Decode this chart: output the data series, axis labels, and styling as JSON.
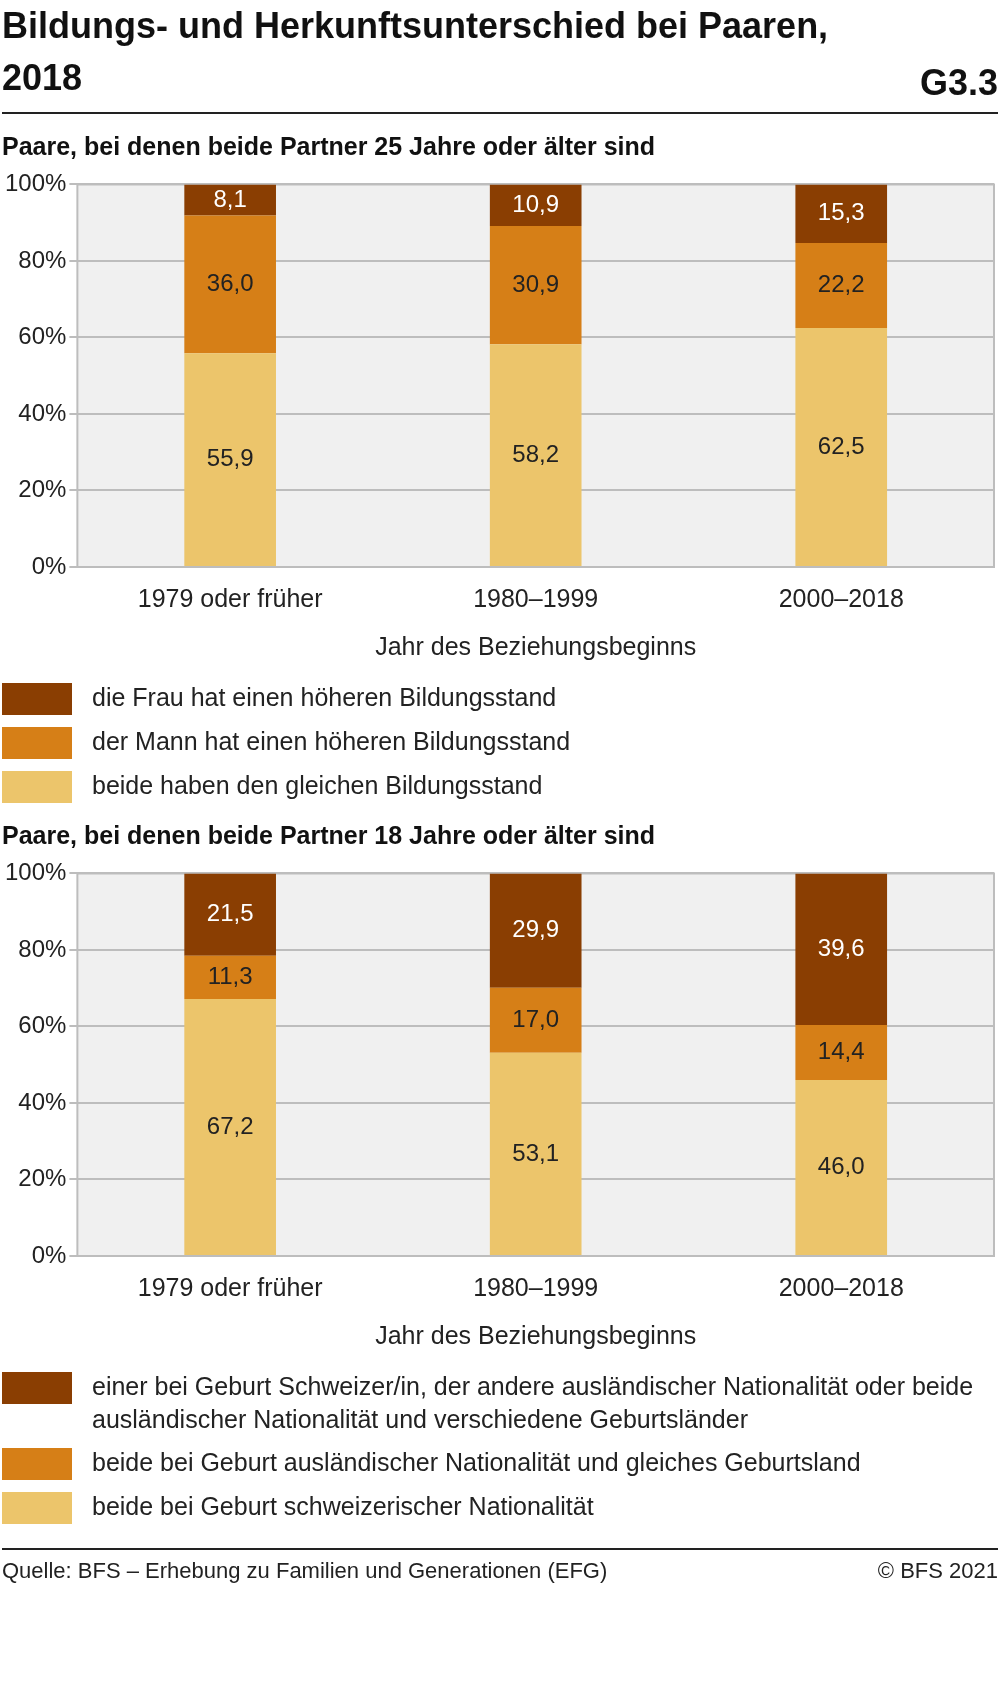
{
  "chart_data": [
    {
      "type": "bar",
      "title": "Bildungs- und Herkunftsunterschied bei Paaren, 2018",
      "subtitle": "Paare, bei denen beide Partner 25 Jahre oder älter sind",
      "annotations": [
        "G3.3"
      ],
      "xlabel": "Jahr des Beziehungsbeginns",
      "categories": [
        "1979 oder früher",
        "1980–1999",
        "2000–2018"
      ],
      "stacked": true,
      "grid": "y",
      "legend": "bottom",
      "ylim": [
        0,
        100
      ],
      "yticks": [
        {
          "value": 0,
          "label": "0%"
        },
        {
          "value": 20,
          "label": "20%"
        },
        {
          "value": 40,
          "label": "40%"
        },
        {
          "value": 60,
          "label": "60%"
        },
        {
          "value": 80,
          "label": "80%"
        },
        {
          "value": 100,
          "label": "100%"
        }
      ],
      "series": [
        {
          "name": "beide haben den gleichen Bildungsstand",
          "color": "#ecc56b",
          "values": [
            55.9,
            58.2,
            62.5
          ],
          "value_labels": [
            "55,9",
            "58,2",
            "62,5"
          ]
        },
        {
          "name": "der Mann hat einen höheren Bildungsstand",
          "color": "#d67f17",
          "values": [
            36.0,
            30.9,
            22.2
          ],
          "value_labels": [
            "36,0",
            "30,9",
            "22,2"
          ]
        },
        {
          "name": "die Frau hat einen höheren Bildungsstand",
          "color": "#8a3e02",
          "values": [
            8.1,
            10.9,
            15.3
          ],
          "value_labels": [
            "8,1",
            "10,9",
            "15,3"
          ]
        }
      ]
    },
    {
      "type": "bar",
      "subtitle": "Paare, bei denen beide Partner 18 Jahre oder älter sind",
      "annotations": [
        "Quelle: BFS – Erhebung zu Familien und Generationen (EFG)",
        "© BFS 2021"
      ],
      "xlabel": "Jahr des Beziehungsbeginns",
      "categories": [
        "1979 oder früher",
        "1980–1999",
        "2000–2018"
      ],
      "stacked": true,
      "grid": "y",
      "legend": "bottom",
      "ylim": [
        0,
        100
      ],
      "yticks": [
        {
          "value": 0,
          "label": "0%"
        },
        {
          "value": 20,
          "label": "20%"
        },
        {
          "value": 40,
          "label": "40%"
        },
        {
          "value": 60,
          "label": "60%"
        },
        {
          "value": 80,
          "label": "80%"
        },
        {
          "value": 100,
          "label": "100%"
        }
      ],
      "series": [
        {
          "name": "beide bei Geburt schweizerischer Nationalität",
          "color": "#ecc56b",
          "values": [
            67.2,
            53.1,
            46.0
          ],
          "value_labels": [
            "67,2",
            "53,1",
            "46,0"
          ]
        },
        {
          "name": "beide bei Geburt ausländischer Nationalität und gleiches Geburtsland",
          "color": "#d67f17",
          "values": [
            11.3,
            17.0,
            14.4
          ],
          "value_labels": [
            "11,3",
            "17,0",
            "14,4"
          ]
        },
        {
          "name": "einer bei Geburt Schweizer/in, der andere ausländischer Nationalität oder beide ausländischer Nationalität und verschiedene Geburtsländer",
          "color": "#8a3e02",
          "values": [
            21.5,
            29.9,
            39.6
          ],
          "value_labels": [
            "21,5",
            "29,9",
            "39,6"
          ]
        }
      ]
    }
  ]
}
